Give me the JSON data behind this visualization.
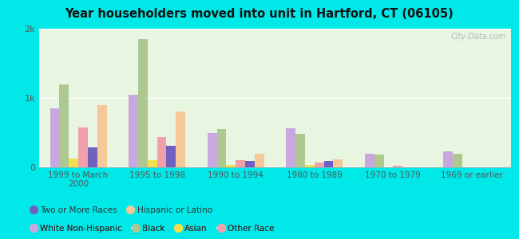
{
  "title": "Year householders moved into unit in Hartford, CT (06105)",
  "categories": [
    "1999 to March\n2000",
    "1995 to 1998",
    "1990 to 1994",
    "1980 to 1989",
    "1970 to 1979",
    "1969 or earlier"
  ],
  "series_order": [
    "White Non-Hispanic",
    "Black",
    "Asian",
    "Other Race",
    "Two or More Races",
    "Hispanic or Latino"
  ],
  "series": {
    "White Non-Hispanic": [
      850,
      1050,
      500,
      560,
      200,
      230
    ],
    "Black": [
      1200,
      1850,
      550,
      480,
      180,
      200
    ],
    "Asian": [
      130,
      100,
      30,
      30,
      0,
      0
    ],
    "Other Race": [
      580,
      440,
      100,
      70,
      25,
      0
    ],
    "Two or More Races": [
      290,
      310,
      90,
      90,
      0,
      0
    ],
    "Hispanic or Latino": [
      900,
      800,
      200,
      110,
      0,
      0
    ]
  },
  "colors": {
    "White Non-Hispanic": "#c9a8e0",
    "Black": "#adc890",
    "Asian": "#f0e050",
    "Other Race": "#f0a0a8",
    "Two or More Races": "#7060c0",
    "Hispanic or Latino": "#f5c898"
  },
  "legend_row1": [
    "White Non-Hispanic",
    "Black",
    "Asian",
    "Other Race"
  ],
  "legend_row2": [
    "Two or More Races",
    "Hispanic or Latino"
  ],
  "ylim": [
    0,
    2000
  ],
  "yticks": [
    0,
    1000,
    2000
  ],
  "ytick_labels": [
    "0",
    "1k",
    "2k"
  ],
  "chart_bg_top": "#e8f5e0",
  "chart_bg_bottom": "#f0f8e8",
  "outer_background": "#00e8e8",
  "watermark": "City-Data.com"
}
